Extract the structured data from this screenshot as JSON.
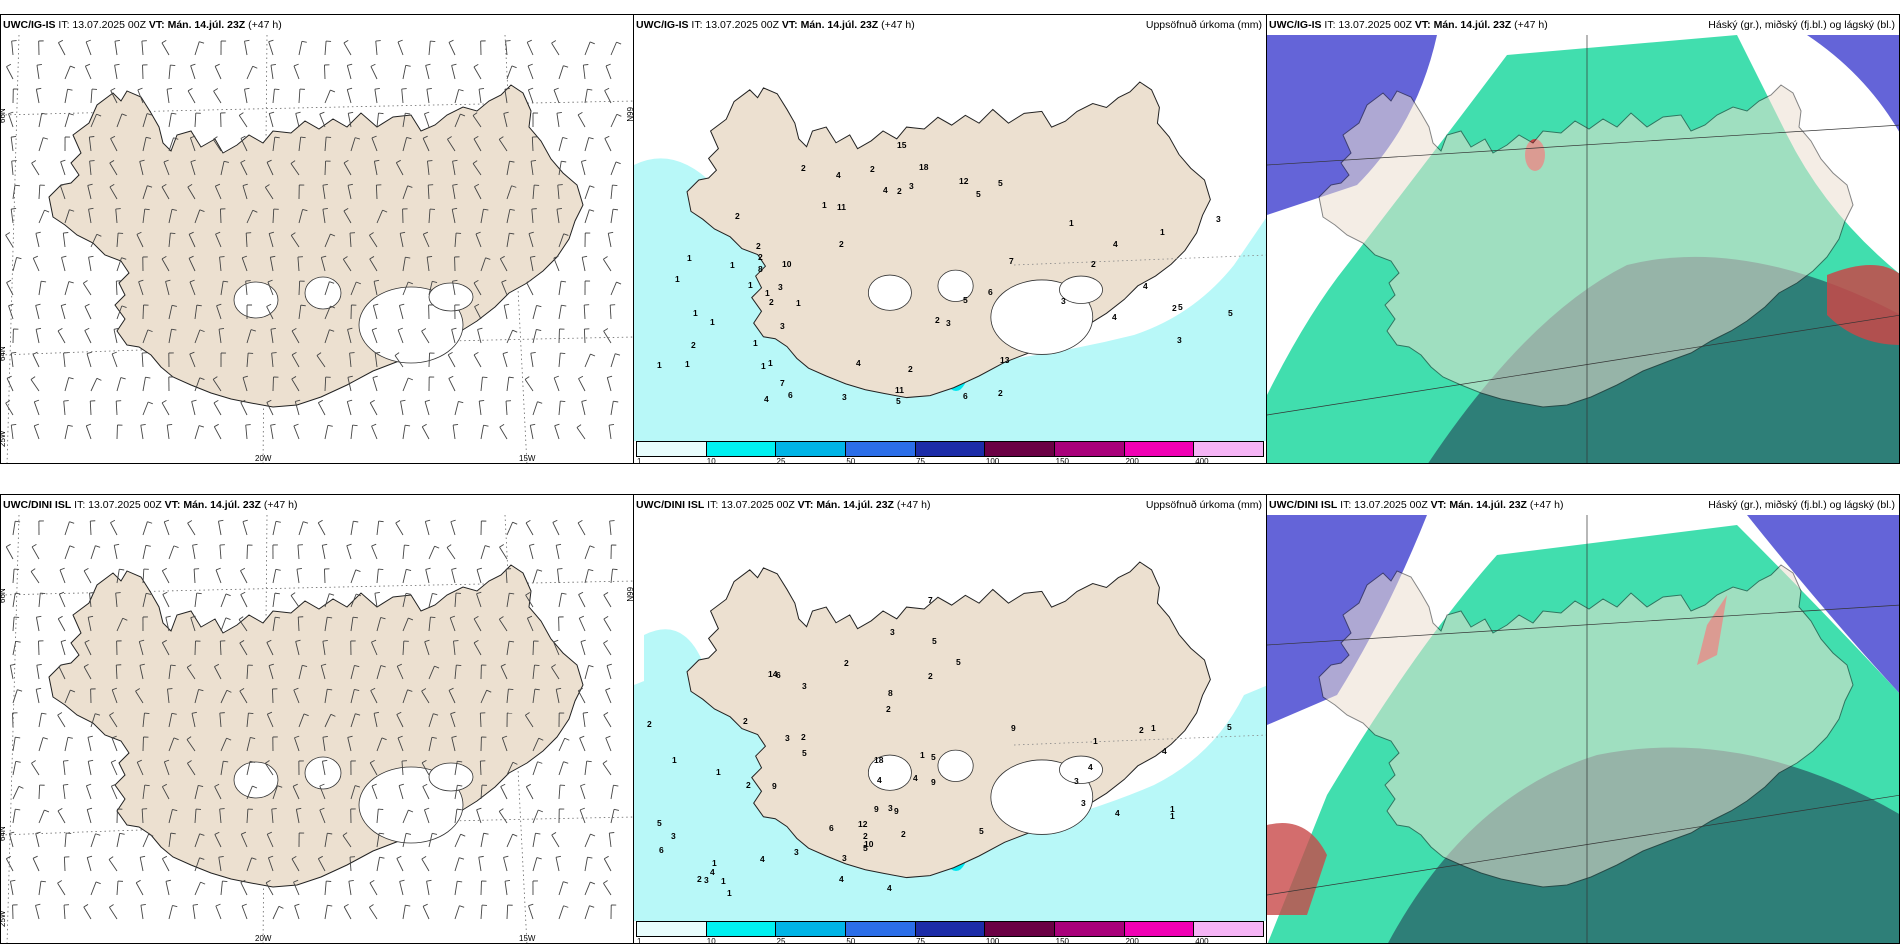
{
  "panels": [
    {
      "model": "UWC/IG-IS",
      "it": "IT: 13.07.2025 00Z",
      "vt_label": "VT:",
      "vt": "Mán. 14.júl. 23Z",
      "lead": "(+47 h)",
      "right_label": ""
    },
    {
      "model": "UWC/IG-IS",
      "it": "IT: 13.07.2025 00Z",
      "vt_label": "VT:",
      "vt": "Mán. 14.júl. 23Z",
      "lead": "(+47 h)",
      "right_label": "Uppsöfnuð úrkoma (mm)"
    },
    {
      "model": "UWC/IG-IS",
      "it": "IT: 13.07.2025 00Z",
      "vt_label": "VT:",
      "vt": "Mán. 14.júl. 23Z",
      "lead": "(+47 h)",
      "right_label": "Háský (gr.), miðský (fj.bl.) og lágský (bl.)"
    },
    {
      "model": "UWC/DINI ISL",
      "it": "IT: 13.07.2025 00Z",
      "vt_label": "VT:",
      "vt": "Mán. 14.júl. 23Z",
      "lead": "(+47 h)",
      "right_label": ""
    },
    {
      "model": "UWC/DINI ISL",
      "it": "IT: 13.07.2025 00Z",
      "vt_label": "VT:",
      "vt": "Mán. 14.júl. 23Z",
      "lead": "(+47 h)",
      "right_label": "Uppsöfnuð úrkoma (mm)"
    },
    {
      "model": "UWC/DINI ISL",
      "it": "IT: 13.07.2025 00Z",
      "vt_label": "VT:",
      "vt": "Mán. 14.júl. 23Z",
      "lead": "(+47 h)",
      "right_label": "Háský (gr.), miðský (fj.bl.) og lágský (bl.)"
    }
  ],
  "axis_labels": {
    "lat66": "66N",
    "lat64": "64N",
    "lon25": "25W",
    "lon20": "20W",
    "lon15": "15W"
  },
  "legend": {
    "colors": [
      "#e8fdfd",
      "#00f0f0",
      "#00b4e6",
      "#2b6ee8",
      "#1c2ca8",
      "#6a0044",
      "#a8007a",
      "#f000b4",
      "#f5b4f5"
    ],
    "labels": [
      "1",
      "10",
      "25",
      "50",
      "75",
      "100",
      "150",
      "200",
      "400"
    ]
  },
  "colors": {
    "land": "#ece0d0",
    "sea": "#ffffff",
    "precip_light": "#b8f8f8",
    "precip_mid": "#00e8f0",
    "cloud_high": "#6464d8",
    "cloud_mid": "#20d8a0",
    "cloud_low": "#2c6e6e"
  },
  "precip_values_top": [
    "1",
    "1",
    "1",
    "2",
    "1",
    "1",
    "2",
    "2",
    "1",
    "2",
    "1",
    "1",
    "1",
    "1",
    "1",
    "1",
    "1",
    "2",
    "2",
    "1",
    "11",
    "11",
    "7",
    "3",
    "2",
    "2",
    "4",
    "4",
    "3",
    "2",
    "6",
    "5",
    "3",
    "4",
    "10",
    "8",
    "7",
    "5",
    "5",
    "6",
    "6",
    "4",
    "2",
    "3",
    "13",
    "15",
    "12",
    "5",
    "18",
    "2",
    "2",
    "3",
    "3",
    "1",
    "3",
    "4",
    "4",
    "2",
    "5",
    "4",
    "5",
    "3",
    "2",
    "1"
  ],
  "precip_values_bottom": [
    "2",
    "1",
    "1",
    "2",
    "9",
    "6",
    "4",
    "5",
    "2",
    "1",
    "3",
    "4",
    "3",
    "1",
    "2",
    "1",
    "2",
    "10",
    "9",
    "18",
    "6",
    "4",
    "3",
    "5",
    "3",
    "3",
    "2",
    "4",
    "3",
    "2",
    "14",
    "12",
    "9",
    "6",
    "5",
    "2",
    "3",
    "5",
    "5",
    "4",
    "4",
    "2",
    "1",
    "3",
    "2",
    "5",
    "8",
    "9",
    "7",
    "5",
    "4",
    "9",
    "4",
    "4",
    "5",
    "3",
    "3",
    "1",
    "1",
    "1",
    "1",
    "2"
  ]
}
